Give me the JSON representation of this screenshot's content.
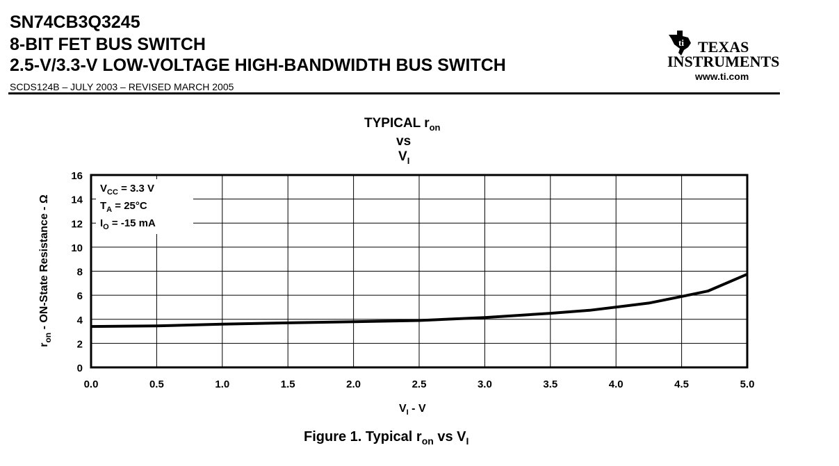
{
  "header": {
    "part_number": "SN74CB3Q3245",
    "line2": "8-BIT FET BUS SWITCH",
    "line3": "2.5-V/3.3-V LOW-VOLTAGE HIGH-BANDWIDTH BUS SWITCH",
    "doc_id": "SCDS124B – JULY 2003 – REVISED MARCH 2005"
  },
  "logo": {
    "word1": "TEXAS",
    "word2": "INSTRUMENTS",
    "url": "www.ti.com"
  },
  "chart_title": {
    "line1_main": "TYPICAL r",
    "line1_sub": "on",
    "line2": "vs",
    "line3_main": "V",
    "line3_sub": "I"
  },
  "conditions": {
    "vcc_main": "V",
    "vcc_sub": "CC",
    "vcc_val": " = 3.3 V",
    "ta_main": "T",
    "ta_sub": "A",
    "ta_val": " = 25°C",
    "io_main": "I",
    "io_sub": "O",
    "io_val": " = -15 mA"
  },
  "axis_labels": {
    "y_main": "r",
    "y_sub": "on",
    "y_rest": " - ON-State Resistance -  Ω",
    "x_main": "V",
    "x_sub": "I",
    "x_rest": " - V"
  },
  "caption": {
    "prefix": "Figure 1. Typical r",
    "sub1": "on",
    "mid": " vs V",
    "sub2": "I"
  },
  "chart_data": {
    "type": "line",
    "x_ticks": [
      "0.0",
      "0.5",
      "1.0",
      "1.5",
      "2.0",
      "2.5",
      "3.0",
      "3.5",
      "4.0",
      "4.5",
      "5.0"
    ],
    "y_ticks": [
      "0",
      "2",
      "4",
      "6",
      "8",
      "10",
      "12",
      "14",
      "16"
    ],
    "xlim": [
      0,
      5
    ],
    "ylim": [
      0,
      16
    ],
    "grid": true,
    "series": [
      {
        "x": [
          0.0,
          0.5,
          1.0,
          1.5,
          2.0,
          2.5,
          3.0,
          3.5,
          3.8,
          4.25,
          4.5,
          4.7,
          5.0
        ],
        "y": [
          3.4,
          3.45,
          3.6,
          3.7,
          3.8,
          3.9,
          4.15,
          4.5,
          4.75,
          5.35,
          5.9,
          6.35,
          7.75
        ]
      }
    ]
  }
}
